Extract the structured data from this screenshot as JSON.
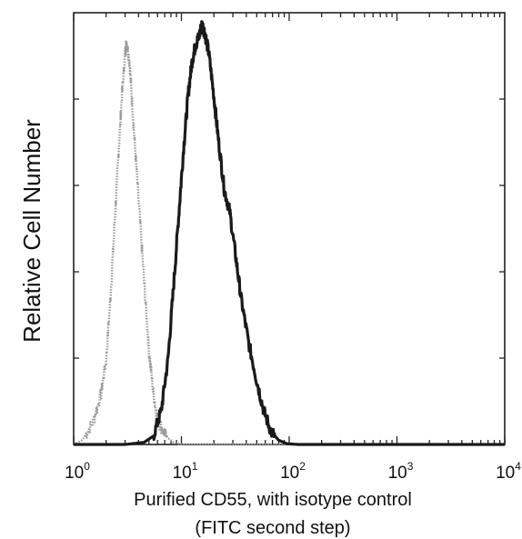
{
  "chart_data": {
    "type": "line",
    "title": "",
    "xlabel": "Purified CD55, with isotype control",
    "xlabel_line2": "(FITC second step)",
    "ylabel": "Relative Cell Number",
    "x_scale": "log",
    "xlim": [
      1,
      10000
    ],
    "ylim": [
      0,
      1
    ],
    "grid": false,
    "legend": "none",
    "x_ticks": [
      {
        "base": "10",
        "exp": "0"
      },
      {
        "base": "10",
        "exp": "1"
      },
      {
        "base": "10",
        "exp": "2"
      },
      {
        "base": "10",
        "exp": "3"
      },
      {
        "base": "10",
        "exp": "4"
      }
    ],
    "series": [
      {
        "style": "isotype-dotted",
        "color": "#9a9a9a",
        "x": [
          1.0,
          1.2,
          1.5,
          1.8,
          2.0,
          2.2,
          2.4,
          2.6,
          2.8,
          3.0,
          3.1,
          3.3,
          3.5,
          3.8,
          4.2,
          4.6,
          5.0,
          5.5,
          6.0,
          6.8,
          7.5,
          8.5,
          10.0,
          20.0,
          100.0,
          10000.0
        ],
        "y": [
          0.0,
          0.01,
          0.05,
          0.12,
          0.2,
          0.35,
          0.52,
          0.68,
          0.82,
          0.92,
          0.95,
          0.9,
          0.8,
          0.66,
          0.5,
          0.35,
          0.22,
          0.12,
          0.06,
          0.03,
          0.015,
          0.005,
          0.0,
          0.0,
          0.0,
          0.0
        ]
      },
      {
        "style": "cd55-solid",
        "color": "#1a1a1a",
        "x": [
          1.0,
          3.0,
          4.5,
          5.5,
          6.5,
          7.5,
          8.5,
          9.5,
          10.5,
          11.5,
          12.5,
          13.5,
          14.5,
          15.5,
          16.5,
          18.0,
          20.0,
          22.0,
          25.0,
          28.0,
          32.0,
          36.0,
          42.0,
          50.0,
          58.0,
          68.0,
          80.0,
          95.0,
          120.0,
          10000.0
        ],
        "y": [
          0.0,
          0.0,
          0.005,
          0.02,
          0.08,
          0.2,
          0.38,
          0.55,
          0.7,
          0.82,
          0.9,
          0.94,
          0.96,
          0.99,
          0.97,
          0.92,
          0.82,
          0.72,
          0.6,
          0.55,
          0.44,
          0.34,
          0.24,
          0.15,
          0.08,
          0.03,
          0.01,
          0.002,
          0.0,
          0.0
        ]
      }
    ]
  }
}
